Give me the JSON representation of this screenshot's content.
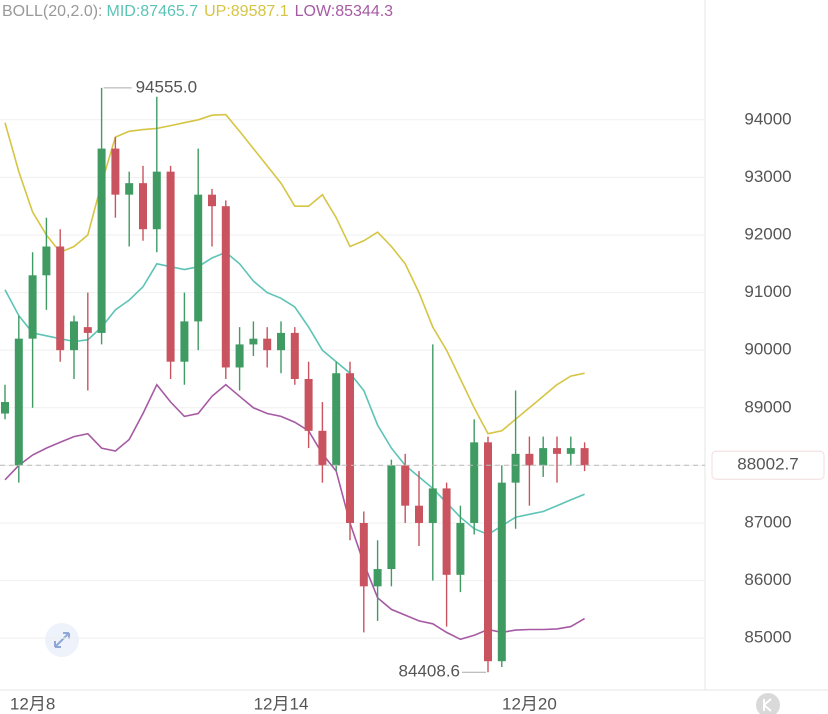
{
  "chart_data": {
    "type": "candlestick",
    "indicator_label": "BOLL(20,2.0):",
    "categories": [
      null,
      null,
      "12月8",
      null,
      null,
      null,
      null,
      null,
      null,
      null,
      null,
      null,
      null,
      null,
      null,
      null,
      null,
      null,
      null,
      null,
      "12月14",
      null,
      null,
      null,
      null,
      null,
      null,
      null,
      null,
      null,
      null,
      null,
      null,
      null,
      null,
      null,
      null,
      null,
      "12月20",
      null,
      null,
      null,
      null
    ],
    "open": [
      88900,
      88000,
      90200,
      91300,
      91800,
      90000,
      90400,
      90300,
      93500,
      92700,
      92900,
      92100,
      93100,
      89800,
      90500,
      92700,
      92500,
      89700,
      90100,
      90200,
      90000,
      90300,
      89500,
      88600,
      88000,
      89600,
      87000,
      85900,
      86200,
      88000,
      87300,
      87000,
      87600,
      86100,
      87000,
      88400,
      84600,
      87700,
      88200,
      88000,
      88300,
      88200,
      88300
    ],
    "high": [
      89400,
      90600,
      91700,
      92300,
      92100,
      90600,
      91000,
      94555.0,
      93700,
      93100,
      93200,
      94400,
      93200,
      91000,
      93500,
      92800,
      92600,
      90400,
      90500,
      90400,
      90500,
      90400,
      89800,
      89100,
      89800,
      89800,
      87200,
      86700,
      88100,
      88200,
      87900,
      90100,
      87700,
      87300,
      88800,
      88500,
      88000,
      89300,
      88500,
      88500,
      88500,
      88500,
      88400
    ],
    "low": [
      88800,
      87700,
      89000,
      90700,
      89800,
      89500,
      89300,
      90100,
      92300,
      91800,
      91900,
      91700,
      89500,
      89400,
      90000,
      91800,
      89500,
      89300,
      89900,
      89700,
      89600,
      89400,
      88300,
      87700,
      87900,
      86700,
      85100,
      85300,
      85900,
      87000,
      86600,
      86000,
      85200,
      85800,
      86800,
      84408.6,
      84500,
      86900,
      87300,
      87800,
      87700,
      88000,
      87900
    ],
    "close": [
      89100,
      90200,
      91300,
      91800,
      90000,
      90500,
      90300,
      93500,
      92700,
      92900,
      92100,
      93100,
      89800,
      90500,
      92700,
      92500,
      89700,
      90100,
      90200,
      90000,
      90300,
      89500,
      88600,
      88000,
      89600,
      87000,
      85900,
      86200,
      88000,
      87300,
      87000,
      87600,
      86100,
      87000,
      88400,
      84600,
      87700,
      88200,
      88000,
      88300,
      88200,
      88300,
      88002.7
    ],
    "up_color": "#3f9b62",
    "down_color": "#c9535f",
    "bands": [
      {
        "name": "MID:87465.7",
        "color": "#5cc4b6",
        "values": [
          91050,
          90600,
          90300,
          90250,
          90200,
          90150,
          90180,
          90400,
          90700,
          90870,
          91100,
          91500,
          91450,
          91400,
          91450,
          91600,
          91700,
          91500,
          91200,
          91000,
          90900,
          90750,
          90400,
          90000,
          89800,
          89600,
          89300,
          88700,
          88300,
          88000,
          87800,
          87600,
          87350,
          87100,
          86900,
          86800,
          86950,
          87100,
          87150,
          87200,
          87300,
          87400,
          87500
        ]
      },
      {
        "name": "UP:89587.1",
        "color": "#d6c544",
        "values": [
          93950,
          93100,
          92400,
          92000,
          91700,
          91800,
          92000,
          92900,
          93700,
          93800,
          93830,
          93850,
          93900,
          93950,
          94000,
          94080,
          94090,
          93800,
          93500,
          93200,
          92900,
          92500,
          92500,
          92700,
          92300,
          91800,
          91900,
          92050,
          91800,
          91500,
          91000,
          90400,
          90000,
          89500,
          89000,
          88550,
          88600,
          88800,
          89000,
          89200,
          89400,
          89550,
          89600
        ]
      },
      {
        "name": "LOW:85344.3",
        "color": "#a65aa3",
        "values": [
          87750,
          88000,
          88180,
          88300,
          88400,
          88500,
          88550,
          88300,
          88250,
          88450,
          88900,
          89400,
          89100,
          88850,
          88900,
          89200,
          89400,
          89200,
          89000,
          88900,
          88850,
          88750,
          88600,
          88200,
          87900,
          87000,
          86300,
          85700,
          85500,
          85400,
          85300,
          85250,
          85100,
          84980,
          85050,
          85150,
          85100,
          85140,
          85150,
          85150,
          85160,
          85200,
          85340
        ]
      }
    ],
    "indicator_color": "#999999",
    "high_label": "94555.0",
    "low_label": "84408.6",
    "last_label": "88002.7",
    "ylim": [
      84100,
      96080
    ],
    "yticks": [
      85000,
      86000,
      87000,
      88000,
      89000,
      90000,
      91000,
      92000,
      93000,
      94000
    ],
    "grid": true
  }
}
